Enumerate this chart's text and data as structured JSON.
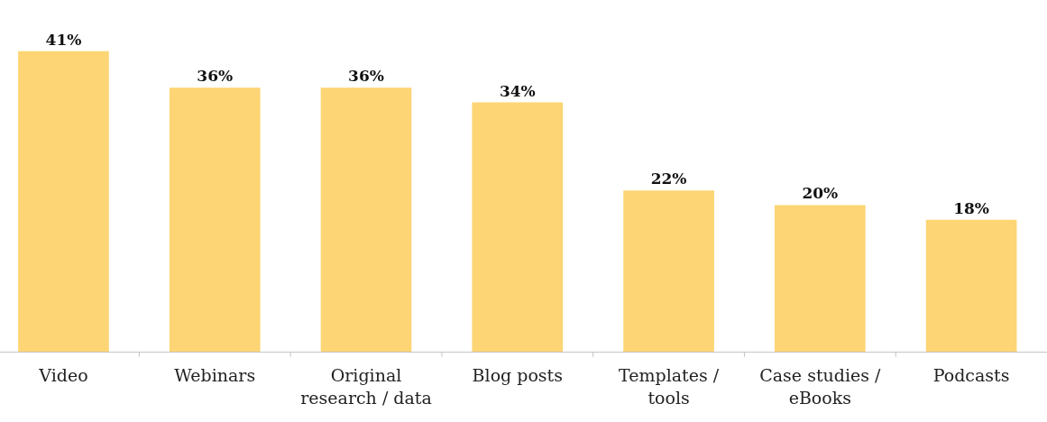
{
  "chart_data": {
    "type": "bar",
    "categories": [
      "Video",
      "Webinars",
      "Original\nresearch / data",
      "Blog posts",
      "Templates /\ntools",
      "Case studies /\neBooks",
      "Podcasts"
    ],
    "values": [
      41,
      36,
      36,
      34,
      22,
      20,
      18
    ],
    "value_labels": [
      "41%",
      "36%",
      "36%",
      "34%",
      "22%",
      "20%",
      "18%"
    ],
    "color": "#fdd574"
  }
}
